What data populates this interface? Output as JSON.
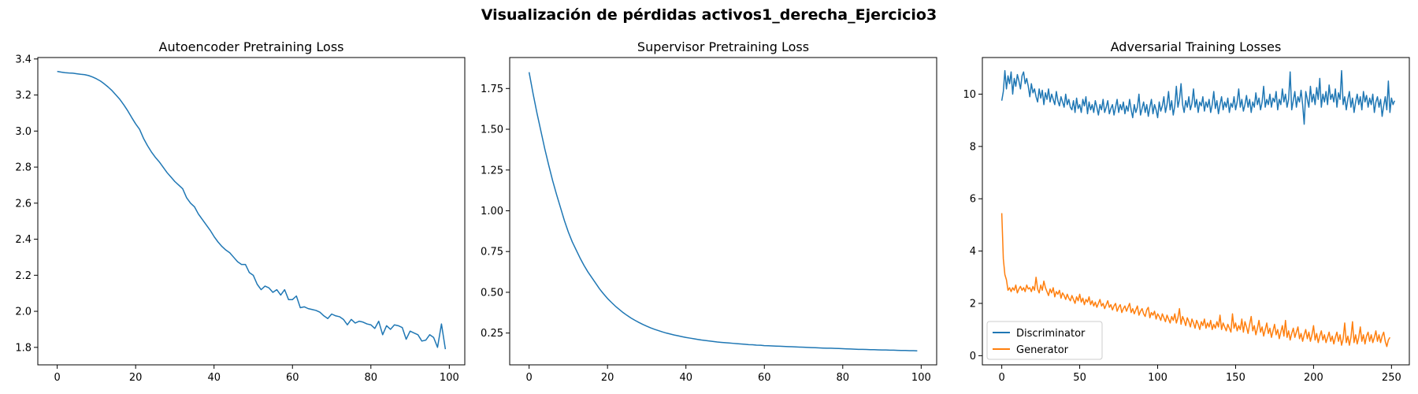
{
  "figure": {
    "title": "Visualización de pérdidas activos1_derecha_Ejercicio3"
  },
  "chart_data": [
    {
      "type": "line",
      "title": "Autoencoder Pretraining Loss",
      "xlabel": "",
      "ylabel": "",
      "xlim": [
        -4.95,
        103.95
      ],
      "ylim": [
        1.703,
        3.408
      ],
      "xticks": [
        0,
        20,
        40,
        60,
        80,
        100
      ],
      "yticks": [
        1.8,
        2.0,
        2.2,
        2.4,
        2.6,
        2.8,
        3.0,
        3.2,
        3.4
      ],
      "tick_decimals": 1,
      "grid": false,
      "series": [
        {
          "color": "#1f77b4",
          "x_start": 0,
          "x_step": 1,
          "values": [
            3.331,
            3.327,
            3.324,
            3.322,
            3.321,
            3.318,
            3.315,
            3.313,
            3.308,
            3.3,
            3.29,
            3.278,
            3.262,
            3.244,
            3.224,
            3.2,
            3.175,
            3.145,
            3.112,
            3.075,
            3.04,
            3.01,
            2.96,
            2.92,
            2.885,
            2.855,
            2.83,
            2.8,
            2.77,
            2.745,
            2.72,
            2.7,
            2.68,
            2.63,
            2.6,
            2.58,
            2.54,
            2.51,
            2.48,
            2.45,
            2.415,
            2.385,
            2.36,
            2.34,
            2.325,
            2.3,
            2.275,
            2.26,
            2.26,
            2.215,
            2.2,
            2.15,
            2.12,
            2.14,
            2.13,
            2.105,
            2.12,
            2.09,
            2.12,
            2.065,
            2.065,
            2.085,
            2.02,
            2.025,
            2.015,
            2.01,
            2.005,
            1.995,
            1.975,
            1.96,
            1.985,
            1.975,
            1.97,
            1.955,
            1.925,
            1.955,
            1.935,
            1.945,
            1.94,
            1.93,
            1.925,
            1.905,
            1.945,
            1.87,
            1.92,
            1.9,
            1.925,
            1.92,
            1.91,
            1.845,
            1.89,
            1.88,
            1.87,
            1.835,
            1.84,
            1.87,
            1.855,
            1.8,
            1.93,
            1.79
          ]
        }
      ]
    },
    {
      "type": "line",
      "title": "Supervisor Pretraining Loss",
      "xlabel": "",
      "ylabel": "",
      "xlim": [
        -4.95,
        103.95
      ],
      "ylim": [
        0.055,
        1.94
      ],
      "xticks": [
        0,
        20,
        40,
        60,
        80,
        100
      ],
      "yticks": [
        0.25,
        0.5,
        0.75,
        1.0,
        1.25,
        1.5,
        1.75
      ],
      "tick_decimals": 2,
      "grid": false,
      "series": [
        {
          "color": "#1f77b4",
          "x_start": 0,
          "x_step": 1,
          "values": [
            1.85,
            1.72,
            1.6,
            1.49,
            1.38,
            1.28,
            1.185,
            1.1,
            1.02,
            0.94,
            0.87,
            0.81,
            0.76,
            0.71,
            0.665,
            0.625,
            0.59,
            0.555,
            0.52,
            0.49,
            0.462,
            0.438,
            0.415,
            0.395,
            0.375,
            0.358,
            0.342,
            0.328,
            0.315,
            0.303,
            0.292,
            0.282,
            0.273,
            0.265,
            0.257,
            0.25,
            0.244,
            0.238,
            0.233,
            0.228,
            0.223,
            0.219,
            0.215,
            0.211,
            0.207,
            0.204,
            0.201,
            0.198,
            0.195,
            0.193,
            0.191,
            0.189,
            0.187,
            0.185,
            0.183,
            0.181,
            0.179,
            0.178,
            0.176,
            0.175,
            0.173,
            0.172,
            0.171,
            0.17,
            0.169,
            0.168,
            0.167,
            0.166,
            0.165,
            0.164,
            0.163,
            0.162,
            0.161,
            0.16,
            0.159,
            0.158,
            0.157,
            0.157,
            0.156,
            0.155,
            0.154,
            0.153,
            0.152,
            0.151,
            0.15,
            0.15,
            0.149,
            0.148,
            0.148,
            0.147,
            0.146,
            0.146,
            0.145,
            0.145,
            0.144,
            0.143,
            0.143,
            0.142,
            0.142,
            0.141
          ]
        }
      ]
    },
    {
      "type": "line",
      "title": "Adversarial Training Losses",
      "xlabel": "",
      "ylabel": "",
      "xlim": [
        -12.45,
        261.45
      ],
      "ylim": [
        -0.35,
        11.4
      ],
      "xticks": [
        0,
        50,
        100,
        150,
        200,
        250
      ],
      "yticks": [
        0,
        2,
        4,
        6,
        8,
        10
      ],
      "tick_decimals": 0,
      "grid": false,
      "legend": {
        "placement": "lower left"
      },
      "series": [
        {
          "name": "Discriminator",
          "color": "#1f77b4",
          "x_start": 0,
          "x_step": 1,
          "values": [
            9.75,
            10.1,
            10.9,
            10.2,
            10.7,
            10.4,
            10.85,
            10.0,
            10.6,
            10.3,
            10.75,
            10.5,
            10.2,
            10.7,
            10.85,
            10.4,
            10.6,
            10.3,
            9.9,
            10.4,
            10.05,
            10.2,
            9.9,
            9.7,
            10.2,
            9.85,
            10.15,
            9.6,
            10.05,
            9.8,
            10.2,
            9.7,
            10.0,
            9.8,
            9.6,
            10.1,
            9.75,
            9.55,
            9.9,
            9.7,
            9.5,
            10.0,
            9.6,
            9.8,
            9.5,
            9.4,
            9.75,
            9.3,
            9.85,
            9.45,
            9.6,
            9.3,
            9.8,
            9.55,
            9.9,
            9.25,
            9.7,
            9.4,
            9.6,
            9.3,
            9.75,
            9.5,
            9.2,
            9.6,
            9.4,
            9.8,
            9.3,
            9.5,
            9.75,
            9.25,
            9.45,
            9.6,
            9.2,
            9.5,
            9.8,
            9.3,
            9.6,
            9.4,
            9.7,
            9.25,
            9.55,
            9.35,
            9.8,
            9.4,
            9.1,
            9.6,
            9.3,
            9.5,
            10.0,
            9.2,
            9.45,
            9.7,
            9.3,
            9.6,
            9.15,
            9.5,
            9.8,
            9.25,
            9.6,
            9.4,
            9.1,
            9.7,
            9.35,
            9.55,
            9.9,
            9.3,
            9.6,
            10.1,
            9.4,
            9.75,
            9.2,
            9.55,
            10.3,
            9.5,
            9.8,
            10.4,
            9.6,
            9.3,
            9.75,
            9.5,
            9.9,
            9.4,
            9.65,
            10.2,
            9.5,
            9.8,
            9.3,
            9.7,
            9.55,
            9.9,
            9.35,
            9.7,
            9.5,
            9.8,
            9.3,
            9.6,
            10.1,
            9.45,
            9.75,
            9.25,
            9.6,
            9.9,
            9.4,
            9.7,
            9.5,
            9.85,
            9.3,
            9.65,
            9.5,
            9.9,
            9.4,
            9.7,
            10.2,
            9.5,
            9.8,
            9.35,
            9.6,
            9.95,
            9.5,
            9.8,
            9.3,
            9.7,
            9.5,
            10.05,
            9.6,
            9.85,
            9.4,
            9.7,
            10.3,
            9.5,
            9.8,
            9.6,
            10.0,
            9.5,
            9.85,
            9.7,
            10.1,
            9.4,
            9.8,
            9.6,
            10.2,
            9.7,
            10.0,
            9.5,
            9.8,
            10.85,
            9.4,
            9.75,
            10.1,
            9.5,
            9.9,
            9.7,
            10.15,
            9.6,
            8.85,
            10.1,
            9.8,
            9.5,
            10.3,
            9.7,
            10.0,
            9.6,
            10.25,
            9.8,
            10.6,
            9.5,
            10.0,
            9.7,
            10.1,
            9.6,
            10.35,
            9.8,
            10.0,
            9.7,
            10.2,
            9.5,
            10.05,
            9.8,
            10.9,
            9.6,
            9.9,
            9.4,
            9.8,
            10.1,
            9.5,
            9.85,
            9.3,
            9.7,
            10.0,
            9.6,
            9.9,
            9.4,
            10.1,
            9.7,
            9.95,
            9.5,
            9.85,
            9.6,
            10.0,
            9.3,
            9.7,
            9.9,
            9.5,
            9.8,
            9.15,
            9.55,
            9.9,
            9.4,
            10.5,
            9.3,
            9.85,
            9.6,
            9.75
          ]
        },
        {
          "name": "Generator",
          "color": "#ff7f0e",
          "x_start": 0,
          "x_step": 1,
          "values": [
            5.45,
            3.7,
            3.1,
            2.9,
            2.5,
            2.6,
            2.45,
            2.6,
            2.5,
            2.7,
            2.4,
            2.55,
            2.65,
            2.5,
            2.6,
            2.45,
            2.7,
            2.55,
            2.6,
            2.45,
            2.65,
            2.5,
            3.0,
            2.55,
            2.4,
            2.7,
            2.5,
            2.85,
            2.6,
            2.45,
            2.3,
            2.55,
            2.4,
            2.6,
            2.25,
            2.45,
            2.35,
            2.5,
            2.2,
            2.4,
            2.3,
            2.15,
            2.35,
            2.2,
            2.1,
            2.3,
            2.15,
            2.0,
            2.25,
            2.1,
            2.35,
            2.05,
            2.2,
            1.95,
            2.15,
            2.05,
            2.25,
            1.95,
            2.1,
            1.9,
            2.05,
            1.85,
            2.0,
            2.15,
            1.9,
            2.0,
            1.8,
            1.95,
            2.1,
            1.85,
            1.95,
            1.75,
            1.9,
            2.0,
            1.7,
            1.85,
            1.95,
            1.65,
            1.8,
            1.9,
            1.7,
            1.85,
            2.0,
            1.65,
            1.8,
            1.6,
            1.75,
            1.9,
            1.55,
            1.7,
            1.8,
            1.6,
            1.5,
            1.75,
            1.85,
            1.45,
            1.65,
            1.55,
            1.7,
            1.4,
            1.6,
            1.5,
            1.35,
            1.6,
            1.45,
            1.3,
            1.55,
            1.4,
            1.25,
            1.5,
            1.35,
            1.6,
            1.25,
            1.45,
            1.8,
            1.2,
            1.5,
            1.35,
            1.15,
            1.45,
            1.3,
            1.1,
            1.4,
            1.25,
            1.05,
            1.35,
            1.2,
            1.0,
            1.3,
            1.15,
            1.4,
            1.05,
            1.25,
            1.1,
            1.35,
            1.0,
            1.2,
            1.05,
            1.3,
            1.1,
            1.55,
            1.0,
            1.25,
            1.1,
            0.95,
            1.2,
            1.05,
            0.9,
            1.6,
            1.05,
            1.25,
            0.95,
            1.15,
            1.0,
            1.4,
            0.9,
            1.3,
            1.1,
            0.85,
            1.2,
            1.5,
            0.95,
            1.15,
            0.8,
            1.05,
            1.35,
            0.9,
            1.1,
            0.75,
            1.0,
            1.25,
            0.85,
            1.05,
            0.7,
            0.95,
            1.2,
            0.8,
            1.0,
            0.65,
            0.9,
            1.15,
            0.75,
            1.35,
            0.7,
            0.95,
            0.6,
            0.85,
            1.05,
            0.7,
            0.9,
            1.1,
            0.65,
            0.85,
            0.55,
            0.8,
            1.0,
            0.65,
            0.9,
            0.55,
            0.8,
            1.15,
            0.6,
            0.85,
            0.5,
            0.75,
            0.95,
            0.6,
            0.8,
            0.5,
            0.7,
            0.9,
            0.55,
            0.75,
            0.45,
            0.7,
            0.9,
            0.55,
            0.8,
            0.4,
            0.65,
            1.25,
            0.5,
            0.75,
            0.4,
            0.7,
            1.3,
            0.5,
            0.8,
            0.45,
            0.7,
            1.1,
            0.55,
            0.8,
            0.45,
            0.75,
            0.9,
            0.55,
            0.8,
            0.5,
            0.7,
            0.95,
            0.55,
            0.8,
            0.5,
            0.75,
            0.9,
            0.55,
            0.35,
            0.6,
            0.7
          ]
        }
      ]
    }
  ]
}
